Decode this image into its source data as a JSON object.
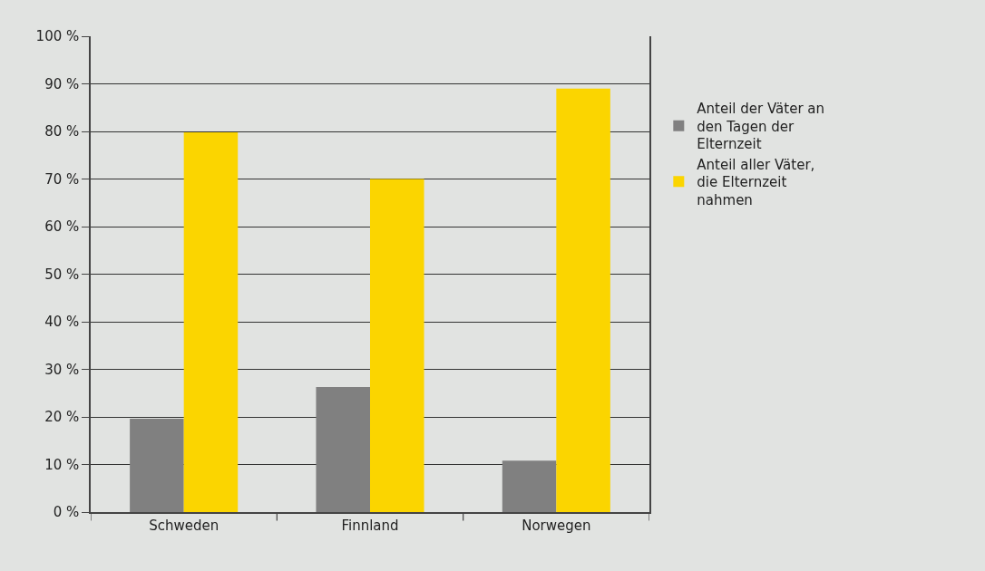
{
  "chart_data": {
    "type": "bar",
    "categories": [
      "Schweden",
      "Finnland",
      "Norwegen"
    ],
    "series": [
      {
        "name": "Anteil der Väter an den Tagen der Elternzeit",
        "color": "#808080",
        "values": [
          19.6,
          26.3,
          10.8
        ]
      },
      {
        "name": "Anteil aller Väter, die Elternzeit nahmen",
        "color": "#fbd500",
        "values": [
          79.8,
          70,
          89
        ]
      }
    ],
    "ylim": [
      0,
      100
    ],
    "yticks": [
      {
        "value": 0,
        "label": "0 %"
      },
      {
        "value": 10,
        "label": "10 %"
      },
      {
        "value": 20,
        "label": "20 %"
      },
      {
        "value": 30,
        "label": "30 %"
      },
      {
        "value": 40,
        "label": "40 %"
      },
      {
        "value": 50,
        "label": "50 %"
      },
      {
        "value": 60,
        "label": "60 %"
      },
      {
        "value": 70,
        "label": "70 %"
      },
      {
        "value": 80,
        "label": "80 %"
      },
      {
        "value": 90,
        "label": "90 %"
      },
      {
        "value": 100,
        "label": "100 %"
      }
    ],
    "grid": "y",
    "legend": "right"
  }
}
